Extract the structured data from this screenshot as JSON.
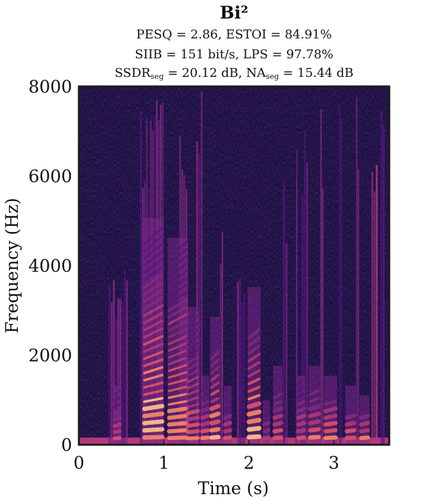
{
  "chart_data": {
    "type": "heatmap",
    "title": "Bi²",
    "metrics": {
      "line1": {
        "pesq_label": "PESQ",
        "pesq": "2.86",
        "estoi_label": "ESTOI",
        "estoi": "84.91%"
      },
      "line2": {
        "siib_label": "SIIB",
        "siib": "151 bit/s",
        "lps_label": "LPS",
        "lps": "97.78%"
      },
      "line3": {
        "ssdr_label": "SSDR",
        "ssdr_sub": "seg",
        "ssdr": "20.12 dB",
        "na_label": "NA",
        "na_sub": "seg",
        "na": "15.44 dB"
      }
    },
    "xlabel": "Time (s)",
    "ylabel": "Frequency (Hz)",
    "xlim": [
      0,
      3.65
    ],
    "ylim": [
      0,
      8000
    ],
    "xticks": [
      0,
      1,
      2,
      3
    ],
    "yticks": [
      0,
      2000,
      4000,
      6000,
      8000
    ],
    "grid": false,
    "colormap": "magma",
    "colormap_stops": [
      "#1c1042",
      "#2d1160",
      "#51127c",
      "#822681",
      "#b63679",
      "#e65164",
      "#fb8861",
      "#fec287",
      "#fcfdbf"
    ],
    "background_color": "#1c1042",
    "harmonic_segments": [
      {
        "t0": 0.42,
        "t1": 0.48,
        "f0": 140,
        "maxf": 1200,
        "intensity": 0.7
      },
      {
        "t0": 0.77,
        "t1": 0.98,
        "f0": 160,
        "maxf": 4600,
        "intensity": 1.0
      },
      {
        "t0": 1.06,
        "t1": 1.27,
        "f0": 150,
        "maxf": 4200,
        "intensity": 0.95
      },
      {
        "t0": 1.28,
        "t1": 1.4,
        "f0": 140,
        "maxf": 2800,
        "intensity": 0.75
      },
      {
        "t0": 1.45,
        "t1": 1.52,
        "f0": 150,
        "maxf": 1400,
        "intensity": 0.85
      },
      {
        "t0": 1.56,
        "t1": 1.64,
        "f0": 160,
        "maxf": 2600,
        "intensity": 0.9
      },
      {
        "t0": 1.72,
        "t1": 1.78,
        "f0": 150,
        "maxf": 1200,
        "intensity": 0.7
      },
      {
        "t0": 2.0,
        "t1": 2.12,
        "f0": 170,
        "maxf": 3200,
        "intensity": 0.95
      },
      {
        "t0": 2.18,
        "t1": 2.23,
        "f0": 150,
        "maxf": 900,
        "intensity": 0.6
      },
      {
        "t0": 2.3,
        "t1": 2.38,
        "f0": 150,
        "maxf": 1600,
        "intensity": 0.75
      },
      {
        "t0": 2.58,
        "t1": 2.65,
        "f0": 150,
        "maxf": 1400,
        "intensity": 0.7
      },
      {
        "t0": 2.72,
        "t1": 2.82,
        "f0": 160,
        "maxf": 1600,
        "intensity": 0.8
      },
      {
        "t0": 2.9,
        "t1": 3.02,
        "f0": 150,
        "maxf": 1400,
        "intensity": 0.85
      },
      {
        "t0": 3.15,
        "t1": 3.24,
        "f0": 150,
        "maxf": 1200,
        "intensity": 0.75
      },
      {
        "t0": 3.32,
        "t1": 3.4,
        "f0": 150,
        "maxf": 1000,
        "intensity": 0.8
      }
    ],
    "broadband_segments": [
      {
        "t0": 0.35,
        "t1": 0.58,
        "maxf": 4000,
        "intensity": 0.4
      },
      {
        "t0": 0.72,
        "t1": 1.0,
        "maxf": 8000,
        "intensity": 0.55
      },
      {
        "t0": 1.18,
        "t1": 1.28,
        "maxf": 8000,
        "intensity": 0.45
      },
      {
        "t0": 1.38,
        "t1": 1.46,
        "maxf": 8000,
        "intensity": 0.5
      },
      {
        "t0": 1.66,
        "t1": 1.7,
        "maxf": 5200,
        "intensity": 0.5
      },
      {
        "t0": 1.86,
        "t1": 1.96,
        "maxf": 4000,
        "intensity": 0.35
      },
      {
        "t0": 2.4,
        "t1": 2.46,
        "maxf": 6000,
        "intensity": 0.4
      },
      {
        "t0": 2.55,
        "t1": 2.57,
        "maxf": 8000,
        "intensity": 0.55
      },
      {
        "t0": 2.62,
        "t1": 2.7,
        "maxf": 7000,
        "intensity": 0.45
      },
      {
        "t0": 2.84,
        "t1": 2.88,
        "maxf": 8000,
        "intensity": 0.5
      },
      {
        "t0": 3.06,
        "t1": 3.1,
        "maxf": 8000,
        "intensity": 0.35
      },
      {
        "t0": 3.26,
        "t1": 3.3,
        "maxf": 8000,
        "intensity": 0.4
      },
      {
        "t0": 3.44,
        "t1": 3.52,
        "maxf": 8000,
        "intensity": 0.55
      },
      {
        "t0": 3.55,
        "t1": 3.6,
        "maxf": 8000,
        "intensity": 0.45
      }
    ]
  }
}
